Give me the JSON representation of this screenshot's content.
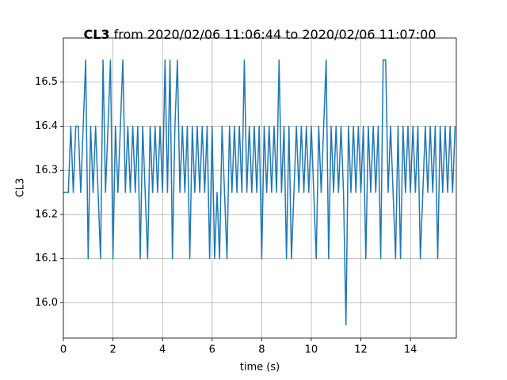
{
  "chart_data": {
    "type": "line",
    "title_bold": "CL3",
    "title": "from 2020/02/06 11:06:44 to 2020/02/06 11:07:00",
    "xlabel": "time (s)",
    "ylabel": "CL3",
    "xlim": [
      0,
      15.85
    ],
    "ylim": [
      15.92,
      16.6
    ],
    "xticks": [
      0,
      2,
      4,
      6,
      8,
      10,
      12,
      14
    ],
    "yticks": [
      {
        "value": 16.0,
        "label": "16.0"
      },
      16.1,
      16.2,
      16.3,
      16.4,
      16.5
    ],
    "grid": true,
    "x": [
      0,
      0.1,
      0.2,
      0.3,
      0.4,
      0.5,
      0.6,
      0.7,
      0.8,
      0.9,
      1,
      1.1,
      1.2,
      1.3,
      1.4,
      1.5,
      1.6,
      1.7,
      1.8,
      1.9,
      2,
      2.1,
      2.2,
      2.3,
      2.4,
      2.5,
      2.6,
      2.7,
      2.8,
      2.9,
      3,
      3.1,
      3.2,
      3.3,
      3.4,
      3.5,
      3.6,
      3.7,
      3.8,
      3.9,
      4,
      4.1,
      4.2,
      4.3,
      4.4,
      4.5,
      4.6,
      4.7,
      4.8,
      4.9,
      5,
      5.1,
      5.2,
      5.3,
      5.4,
      5.5,
      5.6,
      5.7,
      5.8,
      5.9,
      6,
      6.1,
      6.2,
      6.3,
      6.4,
      6.5,
      6.6,
      6.7,
      6.8,
      6.9,
      7,
      7.1,
      7.2,
      7.3,
      7.4,
      7.5,
      7.6,
      7.7,
      7.8,
      7.9,
      8,
      8.1,
      8.2,
      8.3,
      8.4,
      8.5,
      8.6,
      8.7,
      8.8,
      8.9,
      9,
      9.1,
      9.2,
      9.3,
      9.4,
      9.5,
      9.6,
      9.7,
      9.8,
      9.9,
      10,
      10.1,
      10.2,
      10.3,
      10.4,
      10.5,
      10.6,
      10.7,
      10.8,
      10.9,
      11,
      11.1,
      11.2,
      11.3,
      11.4,
      11.5,
      11.6,
      11.7,
      11.8,
      11.9,
      12,
      12.1,
      12.2,
      12.3,
      12.4,
      12.5,
      12.6,
      12.7,
      12.8,
      12.9,
      13,
      13.1,
      13.2,
      13.3,
      13.4,
      13.5,
      13.6,
      13.7,
      13.8,
      13.9,
      14,
      14.1,
      14.2,
      14.3,
      14.4,
      14.5,
      14.6,
      14.7,
      14.8,
      14.9,
      15,
      15.1,
      15.2,
      15.3,
      15.4,
      15.5,
      15.6,
      15.7,
      15.8
    ],
    "series": [
      {
        "color": "#1f77b4",
        "values": [
          16.25,
          16.25,
          16.25,
          16.4,
          16.25,
          16.4,
          16.4,
          16.25,
          16.4,
          16.55,
          16.1,
          16.4,
          16.25,
          16.4,
          16.25,
          16.1,
          16.55,
          16.25,
          16.4,
          16.55,
          16.1,
          16.4,
          16.25,
          16.4,
          16.55,
          16.25,
          16.4,
          16.25,
          16.4,
          16.25,
          16.4,
          16.1,
          16.4,
          16.25,
          16.1,
          16.4,
          16.25,
          16.4,
          16.25,
          16.4,
          16.25,
          16.55,
          16.25,
          16.55,
          16.1,
          16.4,
          16.55,
          16.25,
          16.4,
          16.25,
          16.4,
          16.1,
          16.4,
          16.25,
          16.4,
          16.25,
          16.4,
          16.25,
          16.4,
          16.1,
          16.4,
          16.1,
          16.25,
          16.1,
          16.4,
          16.25,
          16.1,
          16.4,
          16.25,
          16.4,
          16.25,
          16.4,
          16.25,
          16.55,
          16.25,
          16.4,
          16.25,
          16.4,
          16.25,
          16.4,
          16.1,
          16.4,
          16.25,
          16.4,
          16.25,
          16.4,
          16.25,
          16.55,
          16.25,
          16.4,
          16.1,
          16.4,
          16.1,
          16.25,
          16.4,
          16.25,
          16.4,
          16.25,
          16.4,
          16.25,
          16.4,
          16.25,
          16.1,
          16.4,
          16.25,
          16.4,
          16.55,
          16.1,
          16.4,
          16.25,
          16.4,
          16.25,
          16.4,
          16.25,
          15.95,
          16.4,
          16.25,
          16.4,
          16.25,
          16.4,
          16.25,
          16.4,
          16.1,
          16.4,
          16.25,
          16.4,
          16.25,
          16.4,
          16.1,
          16.55,
          16.55,
          16.25,
          16.4,
          16.25,
          16.1,
          16.4,
          16.1,
          16.4,
          16.25,
          16.4,
          16.25,
          16.4,
          16.25,
          16.4,
          16.1,
          16.25,
          16.4,
          16.25,
          16.4,
          16.25,
          16.4,
          16.1,
          16.4,
          16.25,
          16.4,
          16.25,
          16.4,
          16.25,
          16.4
        ]
      }
    ]
  }
}
